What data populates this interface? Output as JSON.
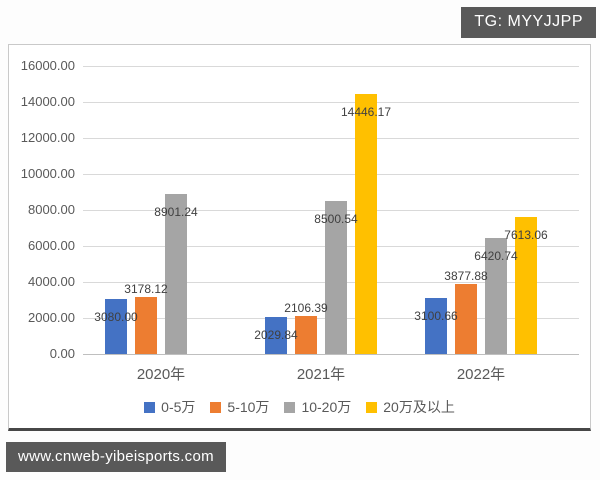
{
  "page": {
    "tg_badge": "TG: MYYJJPP",
    "watermark_url": "www.cnweb-yibeisports.com"
  },
  "chart_data": {
    "type": "bar",
    "title": "",
    "categories": [
      "2020年",
      "2021年",
      "2022年"
    ],
    "series": [
      {
        "name": "0-5万",
        "color": "#4472C4",
        "values": [
          3080.0,
          2029.84,
          3100.66
        ],
        "labels": [
          "3080.00",
          "2029.84",
          "3100.66"
        ]
      },
      {
        "name": "5-10万",
        "color": "#ED7D31",
        "values": [
          3178.12,
          2106.39,
          3877.88
        ],
        "labels": [
          "3178.12",
          "2106.39",
          "3877.88"
        ]
      },
      {
        "name": "10-20万",
        "color": "#A5A5A5",
        "values": [
          8901.24,
          8500.54,
          6420.74
        ],
        "labels": [
          "8901.24",
          "8500.54",
          "6420.74"
        ]
      },
      {
        "name": "20万及以上",
        "color": "#FFC000",
        "values": [
          null,
          14446.17,
          7613.06
        ],
        "labels": [
          null,
          "14446.17",
          "7613.06"
        ]
      }
    ],
    "y_axis": {
      "min": 0,
      "max": 16000,
      "step": 2000,
      "tick_labels": [
        "0.00",
        "2000.00",
        "4000.00",
        "6000.00",
        "8000.00",
        "10000.00",
        "12000.00",
        "14000.00",
        "16000.00"
      ]
    },
    "grid": true,
    "legend_position": "bottom"
  }
}
